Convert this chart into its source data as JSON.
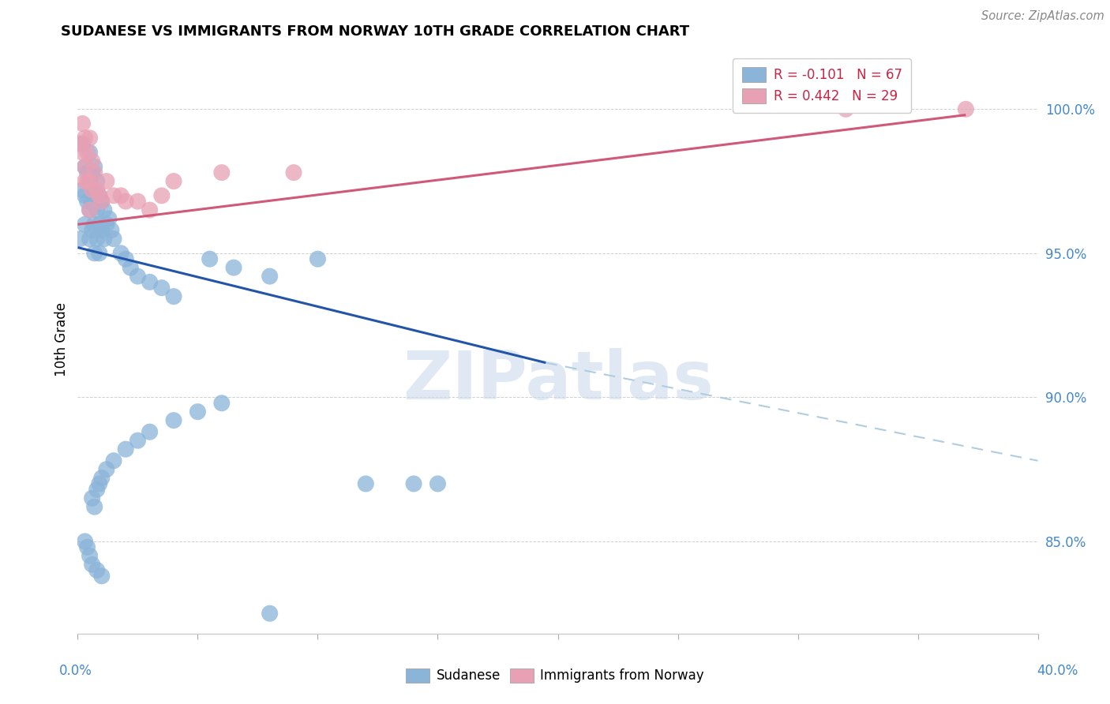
{
  "title": "SUDANESE VS IMMIGRANTS FROM NORWAY 10TH GRADE CORRELATION CHART",
  "source": "Source: ZipAtlas.com",
  "ylabel": "10th Grade",
  "ytick_labels": [
    "85.0%",
    "90.0%",
    "95.0%",
    "100.0%"
  ],
  "ytick_values": [
    0.85,
    0.9,
    0.95,
    1.0
  ],
  "xmin": 0.0,
  "xmax": 0.4,
  "ymin": 0.818,
  "ymax": 1.022,
  "legend_blue_label": "R = -0.101   N = 67",
  "legend_pink_label": "R = 0.442   N = 29",
  "blue_color": "#8ab4d8",
  "pink_color": "#e8a0b4",
  "blue_line_color": "#2255a8",
  "pink_line_color": "#d05878",
  "dashed_line_color": "#b0cce0",
  "watermark_color": "#c8d8ea",
  "blue_scatter_x": [
    0.001,
    0.002,
    0.002,
    0.003,
    0.003,
    0.003,
    0.004,
    0.004,
    0.005,
    0.005,
    0.005,
    0.005,
    0.006,
    0.006,
    0.006,
    0.007,
    0.007,
    0.007,
    0.007,
    0.008,
    0.008,
    0.008,
    0.009,
    0.009,
    0.009,
    0.01,
    0.01,
    0.011,
    0.011,
    0.012,
    0.013,
    0.014,
    0.015,
    0.018,
    0.02,
    0.022,
    0.025,
    0.03,
    0.035,
    0.04,
    0.055,
    0.065,
    0.08,
    0.1,
    0.12,
    0.14,
    0.15,
    0.01,
    0.008,
    0.006,
    0.005,
    0.004,
    0.003,
    0.007,
    0.006,
    0.008,
    0.009,
    0.01,
    0.012,
    0.015,
    0.02,
    0.025,
    0.03,
    0.04,
    0.05,
    0.06,
    0.08
  ],
  "blue_scatter_y": [
    0.955,
    0.972,
    0.988,
    0.98,
    0.97,
    0.96,
    0.978,
    0.968,
    0.985,
    0.975,
    0.965,
    0.955,
    0.978,
    0.968,
    0.958,
    0.98,
    0.97,
    0.96,
    0.95,
    0.975,
    0.965,
    0.955,
    0.97,
    0.96,
    0.95,
    0.968,
    0.958,
    0.965,
    0.955,
    0.96,
    0.962,
    0.958,
    0.955,
    0.95,
    0.948,
    0.945,
    0.942,
    0.94,
    0.938,
    0.935,
    0.948,
    0.945,
    0.942,
    0.948,
    0.87,
    0.87,
    0.87,
    0.838,
    0.84,
    0.842,
    0.845,
    0.848,
    0.85,
    0.862,
    0.865,
    0.868,
    0.87,
    0.872,
    0.875,
    0.878,
    0.882,
    0.885,
    0.888,
    0.892,
    0.895,
    0.898,
    0.825
  ],
  "pink_scatter_x": [
    0.001,
    0.002,
    0.002,
    0.003,
    0.003,
    0.003,
    0.004,
    0.004,
    0.005,
    0.005,
    0.005,
    0.006,
    0.006,
    0.007,
    0.008,
    0.009,
    0.01,
    0.012,
    0.015,
    0.018,
    0.025,
    0.03,
    0.04,
    0.09,
    0.06,
    0.02,
    0.035,
    0.32,
    0.37
  ],
  "pink_scatter_y": [
    0.988,
    0.995,
    0.985,
    0.99,
    0.98,
    0.975,
    0.985,
    0.975,
    0.99,
    0.975,
    0.965,
    0.982,
    0.972,
    0.978,
    0.972,
    0.97,
    0.968,
    0.975,
    0.97,
    0.97,
    0.968,
    0.965,
    0.975,
    0.978,
    0.978,
    0.968,
    0.97,
    1.0,
    1.0
  ],
  "blue_line_x": [
    0.0,
    0.195
  ],
  "blue_line_y": [
    0.952,
    0.912
  ],
  "dash_line_x": [
    0.195,
    0.4
  ],
  "dash_line_y": [
    0.912,
    0.878
  ],
  "pink_line_x": [
    0.0,
    0.37
  ],
  "pink_line_y": [
    0.96,
    0.998
  ],
  "xtick_positions": [
    0.0,
    0.05,
    0.1,
    0.15,
    0.2,
    0.25,
    0.3,
    0.35,
    0.4
  ]
}
